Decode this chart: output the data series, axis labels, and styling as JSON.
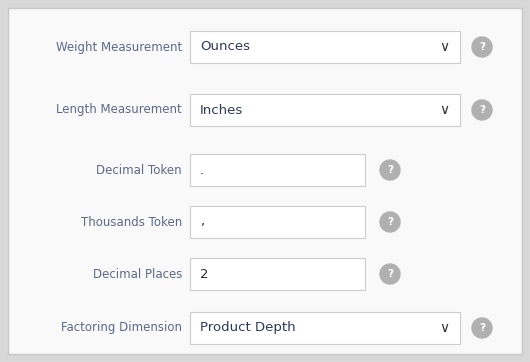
{
  "background_color": "#d8d8d8",
  "panel_color": "#f9f9f9",
  "panel_border_color": "#c8c8c8",
  "label_color_warm": "#b07830",
  "label_color_cool": "#5a6a8a",
  "value_color_dropdown": "#2a3a5a",
  "value_color_input": "#2a2a2a",
  "border_color": "#cccccc",
  "question_bg": "#b0b0b0",
  "question_fg": "#ffffff",
  "chevron_color": "#333333",
  "rows": [
    {
      "label": "Weight Measurement",
      "value": "Ounces",
      "type": "dropdown",
      "label_style": "cool"
    },
    {
      "label": "Length Measurement",
      "value": "Inches",
      "type": "dropdown",
      "label_style": "cool"
    },
    {
      "label": "Decimal Token",
      "value": ".",
      "type": "input",
      "label_style": "cool"
    },
    {
      "label": "Thousands Token",
      "value": ",",
      "type": "input",
      "label_style": "cool"
    },
    {
      "label": "Decimal Places",
      "value": "2",
      "type": "input",
      "label_style": "cool"
    },
    {
      "label": "Factoring Dimension",
      "value": "Product Depth",
      "type": "dropdown",
      "label_style": "cool"
    }
  ],
  "figsize": [
    5.3,
    3.62
  ],
  "dpi": 100
}
